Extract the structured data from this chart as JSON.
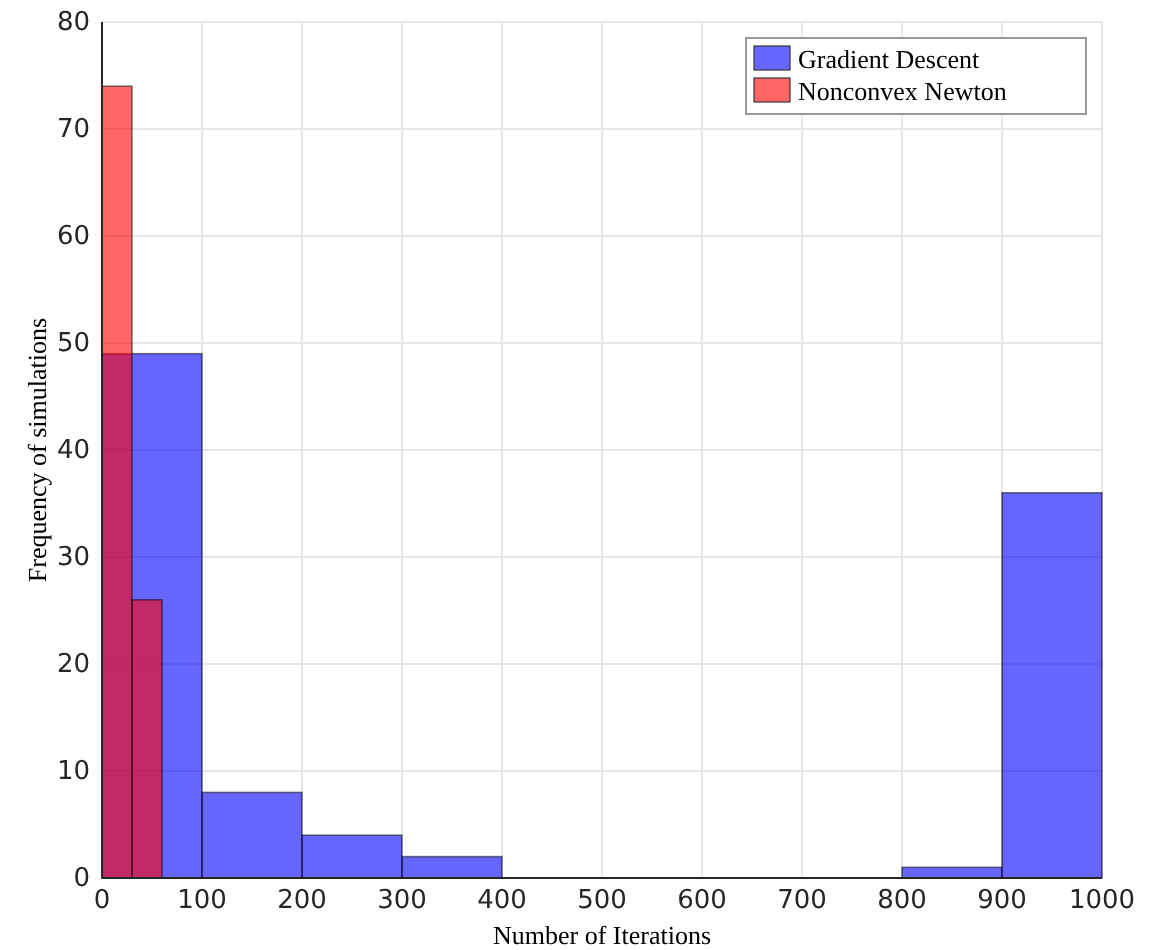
{
  "chart_data": {
    "type": "histogram",
    "xlabel": "Number of Iterations",
    "ylabel": "Frequency of simulations",
    "series": [
      {
        "name": "Gradient Descent",
        "color": "#0000ff",
        "values": [
          49,
          8,
          4,
          2,
          0,
          0,
          0,
          0,
          1,
          36
        ]
      },
      {
        "name": "Nonconvex Newton",
        "color": "#ff0000",
        "bins": [
          0,
          30,
          60
        ],
        "values": [
          74,
          26
        ]
      }
    ],
    "bins": [
      0,
      100,
      200,
      300,
      400,
      500,
      600,
      700,
      800,
      900,
      1000
    ],
    "xlim": [
      0,
      1000
    ],
    "xticks": [
      0,
      100,
      200,
      300,
      400,
      500,
      600,
      700,
      800,
      900,
      1000
    ],
    "ylim": [
      0,
      80
    ],
    "yticks": [
      0,
      10,
      20,
      30,
      40,
      50,
      60,
      70,
      80
    ],
    "grid": true,
    "legend": "top right"
  }
}
